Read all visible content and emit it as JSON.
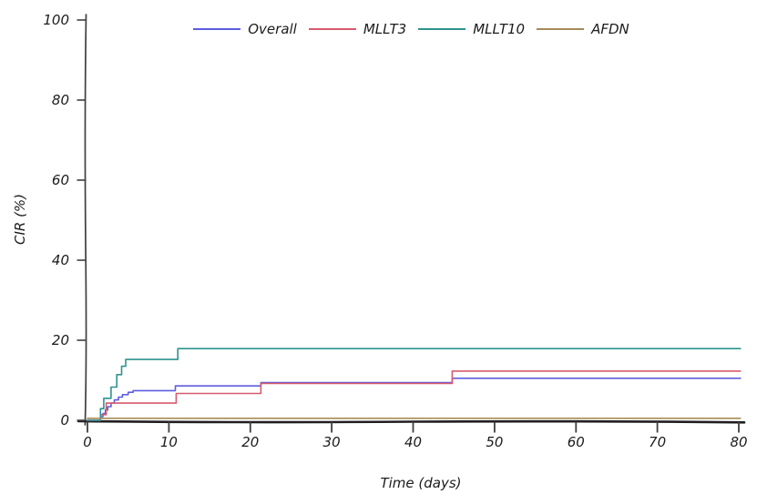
{
  "figure": {
    "title": "",
    "xlabel": "Time (days)",
    "ylabel": "CIR (%)"
  },
  "chart_data": {
    "type": "line",
    "subtype": "step-cumulative-incidence",
    "style": "hand-drawn-sketch",
    "title": "",
    "xlabel": "Time (days)",
    "ylabel": "CIR (%)",
    "xlim": [
      0,
      80
    ],
    "ylim": [
      0,
      100
    ],
    "x_ticks": [
      0,
      10,
      20,
      30,
      40,
      50,
      60,
      70,
      80
    ],
    "y_ticks": [
      0,
      20,
      40,
      60,
      80,
      100
    ],
    "grid": false,
    "legend_position": "top-center",
    "series": [
      {
        "name": "Overall",
        "color": "#5d5de0",
        "points": [
          [
            0,
            0
          ],
          [
            1.6,
            0.9
          ],
          [
            1.9,
            1.7
          ],
          [
            2.2,
            2.6
          ],
          [
            2.5,
            3.4
          ],
          [
            2.9,
            4.3
          ],
          [
            3.3,
            5.1
          ],
          [
            3.8,
            5.8
          ],
          [
            4.3,
            6.4
          ],
          [
            5.0,
            7.0
          ],
          [
            5.6,
            7.4
          ],
          [
            10.8,
            8.6
          ],
          [
            21.3,
            9.4
          ],
          [
            44.8,
            10.5
          ],
          [
            80.2,
            10.5
          ]
        ]
      },
      {
        "name": "MLLT3",
        "color": "#d65a6d",
        "points": [
          [
            0,
            0
          ],
          [
            1.6,
            1.4
          ],
          [
            2.3,
            4.3
          ],
          [
            10.9,
            6.7
          ],
          [
            21.3,
            9.2
          ],
          [
            44.8,
            12.3
          ],
          [
            80.2,
            12.3
          ]
        ]
      },
      {
        "name": "MLLT10",
        "color": "#2d938f",
        "points": [
          [
            0,
            0
          ],
          [
            1.6,
            2.9
          ],
          [
            2.0,
            5.5
          ],
          [
            2.9,
            8.3
          ],
          [
            3.6,
            11.4
          ],
          [
            4.2,
            13.5
          ],
          [
            4.7,
            15.2
          ],
          [
            11.1,
            17.9
          ],
          [
            80.2,
            17.9
          ]
        ]
      },
      {
        "name": "AFDN",
        "color": "#a78a58",
        "points": [
          [
            0,
            0.5
          ],
          [
            80.2,
            0.5
          ]
        ]
      }
    ]
  },
  "colors": {
    "x_axis": "#1f1f1f",
    "y_axis": "#3f3f3f",
    "tick": "#3f3f3f",
    "text": "#1c1c1c",
    "background": "#ffffff"
  }
}
